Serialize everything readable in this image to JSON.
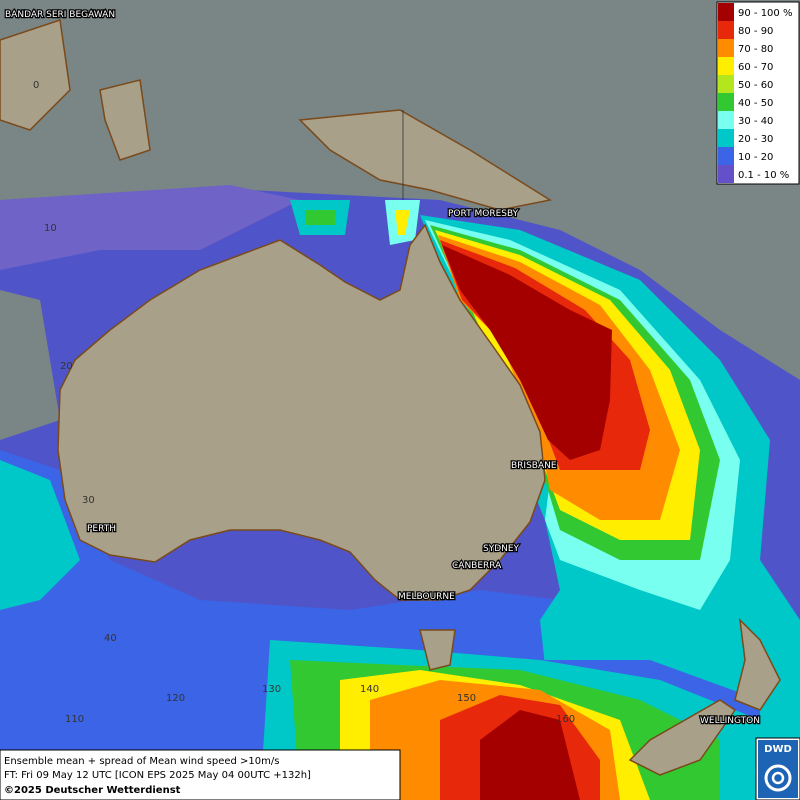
{
  "map": {
    "places": [
      "BANDAR SERI BEGAWAN",
      "PORT MORESBY",
      "BRISBANE",
      "PERTH",
      "SYDNEY",
      "CANBERRA",
      "MELBOURNE",
      "WELLINGTON"
    ],
    "latitude_labels": [
      "0",
      "10",
      "20",
      "30",
      "40"
    ],
    "longitude_labels": [
      "110",
      "120",
      "130",
      "140",
      "150",
      "160"
    ]
  },
  "legend": {
    "entries": [
      {
        "label": "90 - 100 %",
        "color": "#a50000"
      },
      {
        "label": "80 - 90",
        "color": "#e8280a"
      },
      {
        "label": "70 - 80",
        "color": "#ff8c00"
      },
      {
        "label": "60 - 70",
        "color": "#ffee00"
      },
      {
        "label": "50 - 60",
        "color": "#b4e61e"
      },
      {
        "label": "40 - 50",
        "color": "#32c832"
      },
      {
        "label": "30 - 40",
        "color": "#78fff0"
      },
      {
        "label": "20 - 30",
        "color": "#00c8c8"
      },
      {
        "label": "10 - 20",
        "color": "#3c64e6"
      },
      {
        "label": "0.1 - 10 %",
        "color": "#6450c8"
      }
    ]
  },
  "caption": {
    "lines": [
      "Ensemble mean + spread of Mean wind speed >10m/s",
      "FT: Fri 09 May 12 UTC [ICON EPS 2025 May 04 00UTC +132h]",
      "©2025 Deutscher Wetterdienst"
    ]
  },
  "logo": "DWD"
}
